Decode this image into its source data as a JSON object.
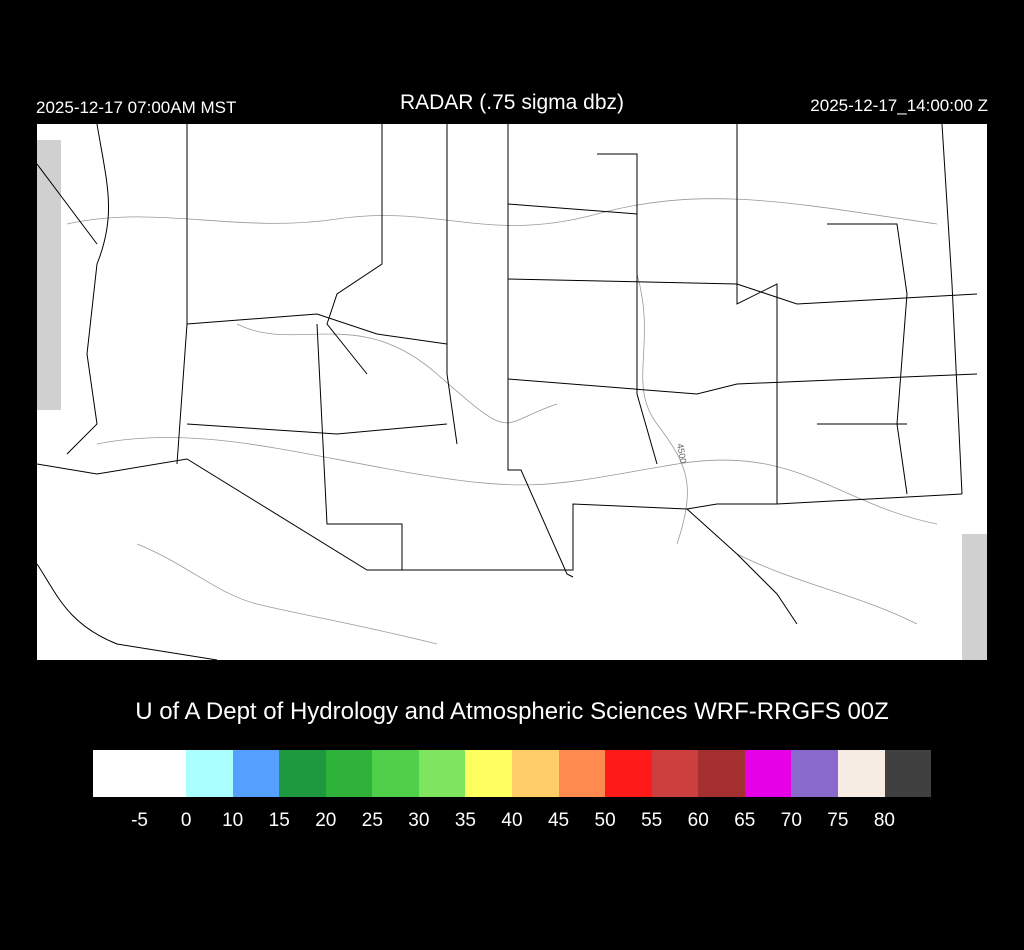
{
  "header": {
    "local_time": "2025-12-17 07:00AM MST",
    "title": "RADAR (.75 sigma dbz)",
    "utc_time": "2025-12-17_14:00:00 Z"
  },
  "map": {
    "contour_label": "4500"
  },
  "credit": "U of A Dept of Hydrology and Atmospheric Sciences WRF-RRGFS 00Z",
  "colorbar": {
    "labels": [
      "-5",
      "0",
      "10",
      "15",
      "20",
      "25",
      "30",
      "35",
      "40",
      "45",
      "50",
      "55",
      "60",
      "65",
      "70",
      "75",
      "80"
    ],
    "colors": [
      "#ffffff",
      "#aaffff",
      "#559fff",
      "#1f993f",
      "#2fb23a",
      "#4fcf4a",
      "#80e55e",
      "#ffff60",
      "#ffce69",
      "#ff8a4f",
      "#ff1a1a",
      "#cc3f3f",
      "#a32f2f",
      "#e600e6",
      "#8a69cc",
      "#f6ece3",
      "#404040"
    ]
  }
}
